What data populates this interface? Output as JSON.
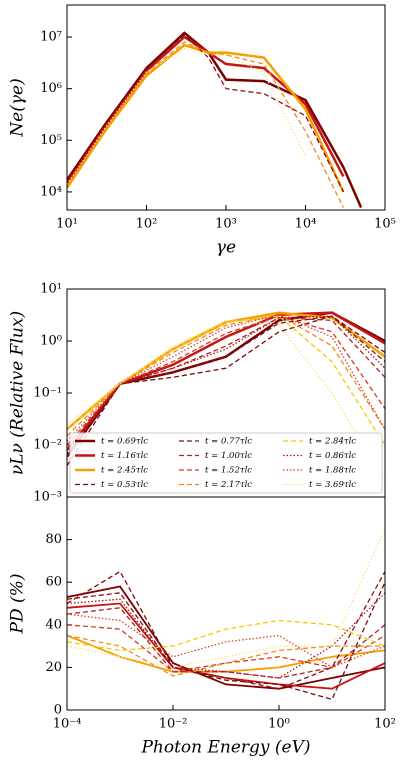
{
  "chart_data": [
    {
      "type": "line",
      "xlabel": "γe",
      "ylabel": "Ne(γe)",
      "xscale": "log",
      "yscale": "log",
      "xlim": [
        10,
        100000
      ],
      "ylim": [
        4466,
        41700000
      ],
      "xticks": [
        {
          "value": 10,
          "label": "10¹"
        },
        {
          "value": 100,
          "label": "10²"
        },
        {
          "value": 1000,
          "label": "10³"
        },
        {
          "value": 10000,
          "label": "10⁴"
        },
        {
          "value": 100000,
          "label": "10⁵"
        }
      ],
      "yticks": [
        {
          "value": 10000,
          "label": "10⁴"
        },
        {
          "value": 100000,
          "label": "10⁵"
        },
        {
          "value": 1000000,
          "label": "10⁶"
        },
        {
          "value": 10000000,
          "label": "10⁷"
        }
      ],
      "x": [
        10,
        30,
        100,
        300,
        600,
        1000,
        3000,
        10000,
        30000,
        50000
      ],
      "series": [
        {
          "color": "#7a0000",
          "dash": "solid",
          "width": 2.5,
          "values": [
            17000,
            200000,
            2500000,
            12000000,
            5000000,
            1500000,
            1400000,
            600000,
            30000,
            5000
          ]
        },
        {
          "color": "#c81414",
          "dash": "solid",
          "width": 2.5,
          "values": [
            15000,
            180000,
            2200000,
            10000000,
            5000000,
            3000000,
            2500000,
            500000,
            20000,
            null
          ]
        },
        {
          "color": "#f5a000",
          "dash": "solid",
          "width": 2.5,
          "values": [
            12000,
            150000,
            1800000,
            7000000,
            5000000,
            5000000,
            4000000,
            400000,
            10000,
            null
          ]
        },
        {
          "color": "#8b1010",
          "dash": "dashed",
          "width": 1.3,
          "values": [
            16000,
            190000,
            2400000,
            11000000,
            4000000,
            1000000,
            800000,
            300000,
            10000,
            null
          ]
        },
        {
          "color": "#f08a20",
          "dash": "dashed",
          "width": 1.3,
          "values": [
            13000,
            160000,
            2000000,
            8000000,
            5000000,
            4500000,
            3000000,
            150000,
            5000,
            null
          ]
        },
        {
          "color": "#ffe080",
          "dash": "dotted",
          "width": 1.3,
          "values": [
            14000,
            170000,
            2100000,
            6000000,
            4500000,
            4500000,
            2000000,
            50000,
            null,
            null
          ]
        }
      ]
    },
    {
      "type": "line",
      "ylabel": "νLν (Relative Flux)",
      "xscale": "log",
      "yscale": "log",
      "legend": "lower left",
      "xlim": [
        0.0001,
        100
      ],
      "ylim": [
        0.001,
        10
      ],
      "yticks": [
        {
          "value": 0.001,
          "label": "10⁻³"
        },
        {
          "value": 0.01,
          "label": "10⁻²"
        },
        {
          "value": 0.1,
          "label": "10⁻¹"
        },
        {
          "value": 1,
          "label": "10⁰"
        },
        {
          "value": 10,
          "label": "10¹"
        }
      ],
      "x": [
        0.0001,
        0.001,
        0.01,
        0.1,
        1,
        10,
        100
      ],
      "series": [
        {
          "name": "t = 0.69τlc",
          "color": "#7a0000",
          "dash": "solid",
          "width": 2.5,
          "values": [
            0.006,
            0.15,
            0.25,
            0.5,
            2.5,
            3.5,
            1.0
          ]
        },
        {
          "name": "t = 1.16τlc",
          "color": "#c81414",
          "dash": "solid",
          "width": 2.5,
          "values": [
            0.008,
            0.15,
            0.35,
            1.2,
            3.2,
            3.5,
            0.9
          ]
        },
        {
          "name": "t = 2.45τlc",
          "color": "#f5a000",
          "dash": "solid",
          "width": 2.5,
          "values": [
            0.02,
            0.15,
            0.7,
            2.3,
            3.5,
            2.8,
            0.5
          ]
        },
        {
          "name": "t = 0.53τlc",
          "color": "#7a0a0a",
          "dash": "dashed",
          "width": 1.3,
          "values": [
            0.004,
            0.15,
            0.2,
            0.3,
            1.5,
            3.0,
            0.6
          ]
        },
        {
          "name": "t = 0.77τlc",
          "color": "#8b1010",
          "dash": "dashed",
          "width": 1.3,
          "values": [
            0.006,
            0.15,
            0.25,
            0.5,
            2.2,
            3.0,
            0.4
          ]
        },
        {
          "name": "t = 1.00τlc",
          "color": "#b22020",
          "dash": "dashed",
          "width": 1.3,
          "values": [
            0.008,
            0.15,
            0.3,
            0.8,
            2.8,
            2.5,
            0.2
          ]
        },
        {
          "name": "t = 1.52τlc",
          "color": "#d83a20",
          "dash": "dashed",
          "width": 1.3,
          "values": [
            0.01,
            0.15,
            0.4,
            1.4,
            3.0,
            1.5,
            0.05
          ]
        },
        {
          "name": "t = 2.17τlc",
          "color": "#f08a20",
          "dash": "dashed",
          "width": 1.3,
          "values": [
            0.015,
            0.15,
            0.6,
            2.0,
            3.2,
            0.8,
            0.02
          ]
        },
        {
          "name": "t = 2.84τlc",
          "color": "#f5c800",
          "dash": "dashed",
          "width": 1.3,
          "values": [
            0.02,
            0.15,
            0.7,
            2.3,
            3.0,
            0.4,
            0.01
          ]
        },
        {
          "name": "t = 0.86τlc",
          "color": "#b01010",
          "dash": "dotted",
          "width": 1.3,
          "values": [
            0.007,
            0.15,
            0.3,
            0.7,
            2.8,
            3.0,
            0.3
          ]
        },
        {
          "name": "t = 1.88τlc",
          "color": "#e04020",
          "dash": "dotted",
          "width": 1.3,
          "values": [
            0.012,
            0.15,
            0.5,
            1.8,
            3.2,
            1.2,
            0.02
          ]
        },
        {
          "name": "t = 3.69τlc",
          "color": "#ffe080",
          "dash": "dotted",
          "width": 1.3,
          "values": [
            0.025,
            0.15,
            0.8,
            2.5,
            2.0,
            0.1,
            0.002
          ]
        }
      ]
    },
    {
      "type": "line",
      "xlabel": "Photon Energy (eV)",
      "ylabel": "PD (%)",
      "xscale": "log",
      "xlim": [
        0.0001,
        100
      ],
      "ylim": [
        0,
        100
      ],
      "xticks": [
        {
          "value": 0.0001,
          "label": "10⁻⁴"
        },
        {
          "value": 0.01,
          "label": "10⁻²"
        },
        {
          "value": 1,
          "label": "10⁰"
        },
        {
          "value": 100,
          "label": "10²"
        }
      ],
      "yticks": [
        0,
        20,
        40,
        60,
        80
      ],
      "x": [
        0.0001,
        0.001,
        0.01,
        0.1,
        1,
        10,
        100
      ],
      "series": [
        {
          "color": "#7a0000",
          "dash": "solid",
          "width": 1.8,
          "values": [
            53,
            58,
            22,
            12,
            10,
            15,
            20
          ]
        },
        {
          "color": "#c81414",
          "dash": "solid",
          "width": 1.8,
          "values": [
            48,
            50,
            20,
            15,
            12,
            10,
            22
          ]
        },
        {
          "color": "#f5a000",
          "dash": "solid",
          "width": 1.8,
          "values": [
            35,
            25,
            18,
            18,
            20,
            25,
            28
          ]
        },
        {
          "color": "#7a0a0a",
          "dash": "dashed",
          "width": 1.3,
          "values": [
            50,
            65,
            20,
            14,
            12,
            5,
            60
          ]
        },
        {
          "color": "#8b1010",
          "dash": "dashed",
          "width": 1.3,
          "values": [
            52,
            55,
            20,
            15,
            10,
            20,
            65
          ]
        },
        {
          "color": "#b22020",
          "dash": "dashed",
          "width": 1.3,
          "values": [
            45,
            48,
            18,
            18,
            15,
            20,
            40
          ]
        },
        {
          "color": "#d83a20",
          "dash": "dashed",
          "width": 1.3,
          "values": [
            40,
            38,
            18,
            22,
            25,
            20,
            35
          ]
        },
        {
          "color": "#f08a20",
          "dash": "dashed",
          "width": 1.3,
          "values": [
            35,
            30,
            16,
            22,
            28,
            30,
            30
          ]
        },
        {
          "color": "#f5c800",
          "dash": "dashed",
          "width": 1.3,
          "values": [
            32,
            28,
            30,
            38,
            42,
            40,
            30
          ]
        },
        {
          "color": "#b01010",
          "dash": "dotted",
          "width": 1.3,
          "values": [
            50,
            52,
            20,
            18,
            15,
            30,
            55
          ]
        },
        {
          "color": "#e04020",
          "dash": "dotted",
          "width": 1.3,
          "values": [
            45,
            42,
            25,
            32,
            35,
            20,
            30
          ]
        },
        {
          "color": "#ffe080",
          "dash": "dotted",
          "width": 1.3,
          "values": [
            30,
            25,
            20,
            25,
            30,
            30,
            85
          ]
        }
      ]
    }
  ]
}
